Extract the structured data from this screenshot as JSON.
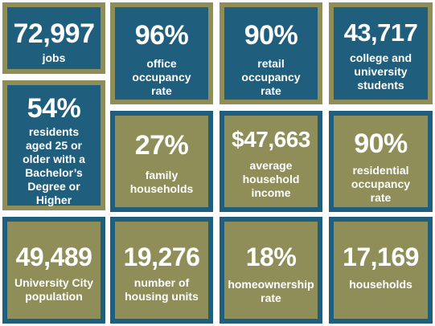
{
  "tiles": [
    {
      "value": "72,997",
      "label": "jobs"
    },
    {
      "value": "96%",
      "label": "office\noccupancy\nrate"
    },
    {
      "value": "90%",
      "label": "retail\noccupancy\nrate"
    },
    {
      "value": "43,717",
      "label": "college and\nuniversity\nstudents"
    },
    {
      "value": "54%",
      "label": "residents\naged 25 or\nolder with a\nBachelor’s\nDegree or\nHigher"
    },
    {
      "value": "27%",
      "label": "family\nhouseholds"
    },
    {
      "value": "$47,663",
      "label": "average\nhousehold\nincome"
    },
    {
      "value": "90%",
      "label": "residential\noccupancy\nrate"
    },
    {
      "value": "49,489",
      "label": "University City\npopulation"
    },
    {
      "value": "19,276",
      "label": "number of\nhousing units"
    },
    {
      "value": "18%",
      "label": "homeownership\nrate"
    },
    {
      "value": "17,169",
      "label": "households"
    }
  ],
  "colors": {
    "blue": "#1f5f7d",
    "olive": "#8f8e58",
    "text": "#ffffff"
  }
}
